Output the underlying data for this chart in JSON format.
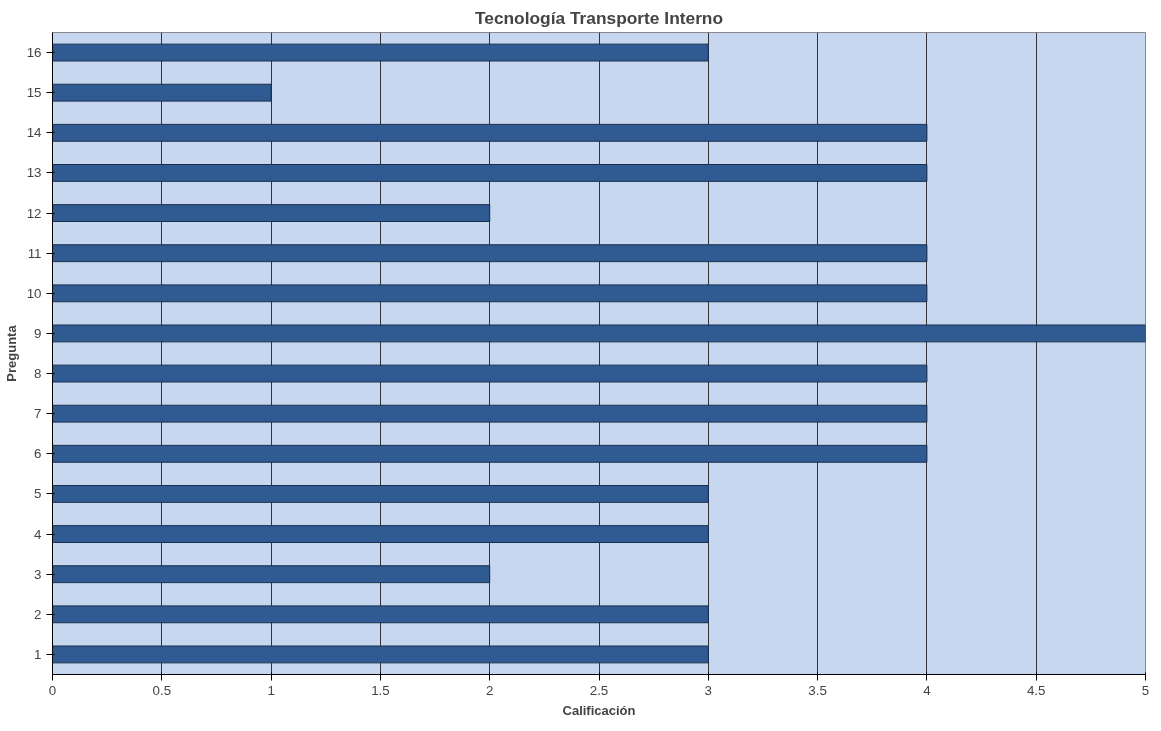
{
  "chart_data": {
    "type": "bar",
    "orientation": "horizontal",
    "title": "Tecnología Transporte Interno",
    "xlabel": "Calificación",
    "ylabel": "Pregunta",
    "categories": [
      "16",
      "15",
      "14",
      "13",
      "12",
      "11",
      "10",
      "9",
      "8",
      "7",
      "6",
      "5",
      "4",
      "3",
      "2",
      "1"
    ],
    "values": [
      3,
      1,
      4,
      4,
      2,
      4,
      4,
      5,
      4,
      4,
      4,
      3,
      3,
      2,
      3,
      3
    ],
    "color": "#2f5b92",
    "xlim": [
      0,
      5
    ],
    "xticks": [
      0,
      0.5,
      1,
      1.5,
      2,
      2.5,
      3,
      3.5,
      4,
      4.5,
      5
    ],
    "grid": "x"
  }
}
